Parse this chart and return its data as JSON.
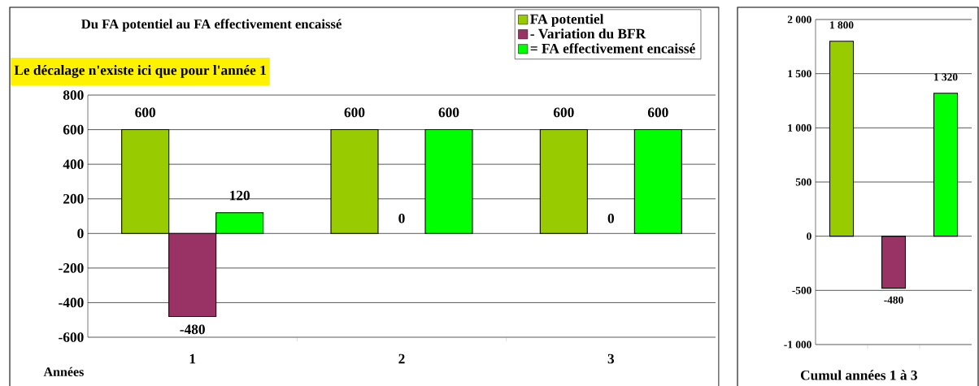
{
  "chart_data": [
    {
      "type": "bar",
      "title": "Du FA potentiel au FA effectivement encaissé",
      "annotations": [
        "Le décalage n'existe ici que pour l'année 1"
      ],
      "xlabel": "Années",
      "categories": [
        "1",
        "2",
        "3"
      ],
      "series": [
        {
          "name": "FA potentiel",
          "color": "#99cc00",
          "values": [
            600,
            600,
            600
          ]
        },
        {
          "name": "- Variation du BFR",
          "color": "#993366",
          "values": [
            -480,
            0,
            0
          ]
        },
        {
          "name": "= FA effectivement encaissé",
          "color": "#00ff00",
          "values": [
            120,
            600,
            600
          ]
        }
      ],
      "ylim": [
        -600,
        800
      ],
      "yticks": [
        -600,
        -400,
        -200,
        0,
        200,
        400,
        600,
        800
      ],
      "grid": "y",
      "legend": "top right",
      "data_labels": true
    },
    {
      "type": "bar",
      "xlabel": "Cumul années 1 à 3",
      "categories": [
        null,
        null,
        null
      ],
      "values": [
        1800,
        -480,
        1320
      ],
      "colors": [
        "#99cc00",
        "#993366",
        "#00ff00"
      ],
      "value_labels": [
        "1 800",
        "-480",
        "1 320"
      ],
      "ylim": [
        -1000,
        2000
      ],
      "yticks": [
        {
          "value": -1000,
          "label": "-1 000"
        },
        {
          "value": -500,
          "label": "-500"
        },
        0,
        500,
        {
          "value": 1000,
          "label": "1 000"
        },
        {
          "value": 1500,
          "label": "1 500"
        },
        {
          "value": 2000,
          "label": "2 000"
        }
      ],
      "grid": "y"
    }
  ]
}
